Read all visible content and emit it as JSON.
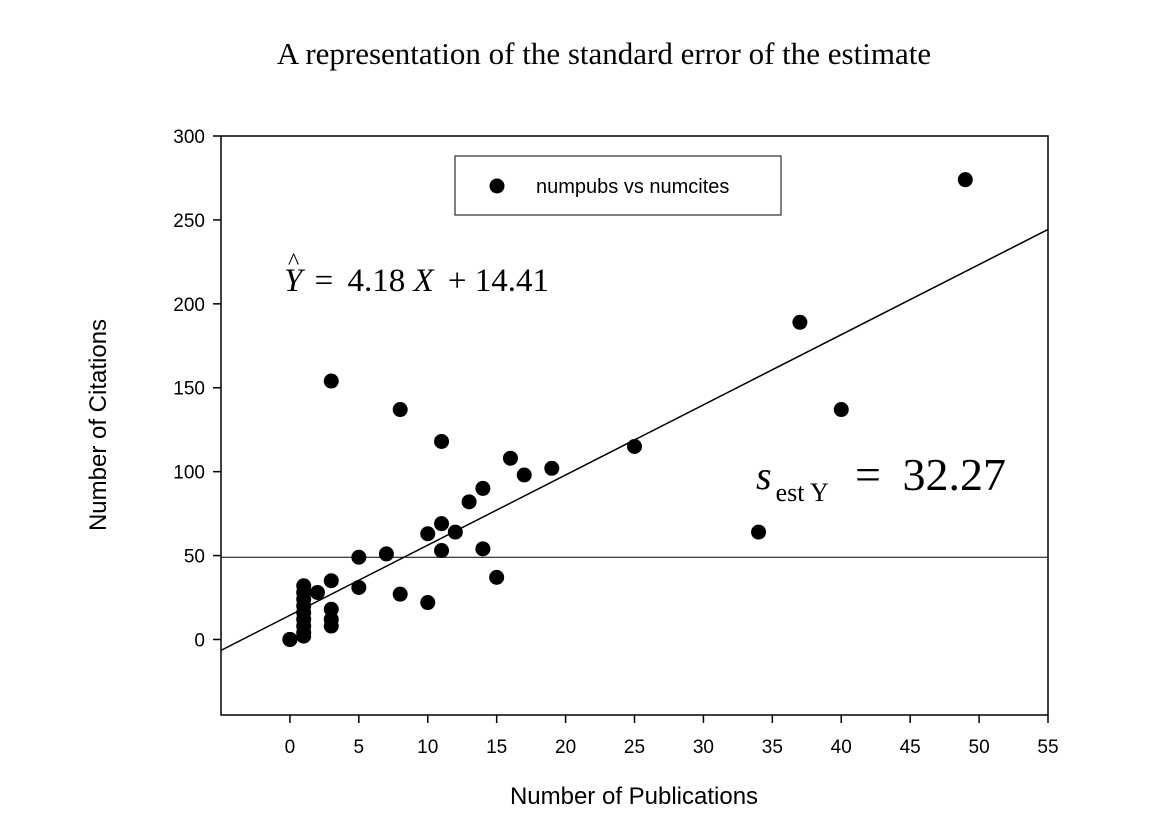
{
  "chart_data": {
    "type": "scatter",
    "title": "A representation of the standard error of the estimate",
    "xlabel": "Number of Publications",
    "ylabel": "Number of Citations",
    "xlim": [
      -5,
      55
    ],
    "ylim": [
      -45,
      300
    ],
    "xticks": [
      0,
      5,
      10,
      15,
      20,
      25,
      30,
      35,
      40,
      45,
      50,
      55
    ],
    "yticks": [
      0,
      50,
      100,
      150,
      200,
      250,
      300
    ],
    "grid": false,
    "legend": {
      "position": "top-center",
      "entries": [
        "numpubs vs numcites"
      ]
    },
    "series": [
      {
        "name": "numpubs vs numcites",
        "marker": "filled-circle",
        "color": "#000000",
        "points": [
          [
            0,
            0
          ],
          [
            0,
            0
          ],
          [
            0,
            0
          ],
          [
            1,
            2
          ],
          [
            1,
            4
          ],
          [
            1,
            8
          ],
          [
            1,
            12
          ],
          [
            1,
            16
          ],
          [
            1,
            20
          ],
          [
            1,
            24
          ],
          [
            1,
            28
          ],
          [
            1,
            32
          ],
          [
            2,
            28
          ],
          [
            3,
            8
          ],
          [
            3,
            12
          ],
          [
            3,
            18
          ],
          [
            3,
            35
          ],
          [
            3,
            154
          ],
          [
            5,
            31
          ],
          [
            5,
            49
          ],
          [
            7,
            51
          ],
          [
            8,
            27
          ],
          [
            8,
            137
          ],
          [
            10,
            22
          ],
          [
            10,
            63
          ],
          [
            11,
            53
          ],
          [
            11,
            69
          ],
          [
            11,
            118
          ],
          [
            12,
            64
          ],
          [
            13,
            82
          ],
          [
            14,
            54
          ],
          [
            14,
            90
          ],
          [
            15,
            37
          ],
          [
            16,
            108
          ],
          [
            17,
            98
          ],
          [
            19,
            102
          ],
          [
            25,
            115
          ],
          [
            34,
            64
          ],
          [
            37,
            189
          ],
          [
            40,
            137
          ],
          [
            49,
            274
          ]
        ]
      }
    ],
    "regression_line": {
      "slope": 4.18,
      "intercept": 14.41
    },
    "reference_line_y": 49,
    "annotations": {
      "regression_equation": {
        "y_hat": "Y",
        "equals": "=",
        "coef": "4.18",
        "x_var": "X",
        "plus": "+",
        "intercept": "14.41"
      },
      "standard_error": {
        "symbol": "s",
        "subscript": "est Y",
        "equals": "=",
        "value": "32.27"
      }
    }
  }
}
